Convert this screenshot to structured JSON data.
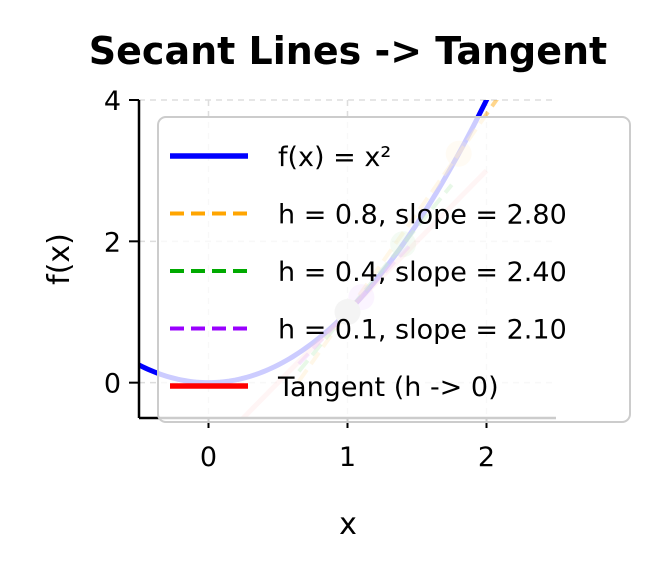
{
  "chart_data": {
    "type": "line",
    "title": "Secant Lines -> Tangent",
    "xlabel": "x",
    "ylabel": "f(x)",
    "xlim": [
      -0.5,
      2.5
    ],
    "ylim": [
      -0.5,
      4
    ],
    "xticks": [
      0,
      1,
      2
    ],
    "yticks": [
      0,
      2,
      4
    ],
    "xtick_labels": [
      "0",
      "1",
      "2"
    ],
    "ytick_labels": [
      "0",
      "2",
      "4"
    ],
    "grid": true,
    "legend": "upper-right",
    "point": {
      "x": 1,
      "y": 1,
      "color": "#c8c8c8"
    },
    "series": [
      {
        "name": "f(x) = x²",
        "kind": "curve",
        "color": "#0000ff",
        "x_range": [
          -0.5,
          2.1
        ]
      },
      {
        "name": "h = 0.8, slope = 2.80",
        "kind": "secant",
        "color": "#ffa500",
        "h": 0.8,
        "slope": 2.8
      },
      {
        "name": "h = 0.4, slope = 2.40",
        "kind": "secant",
        "color": "#00aa00",
        "h": 0.4,
        "slope": 2.4
      },
      {
        "name": "h = 0.1, slope = 2.10",
        "kind": "secant",
        "color": "#9900ff",
        "h": 0.1,
        "slope": 2.1
      },
      {
        "name": "Tangent (h -> 0)",
        "kind": "tangent",
        "color": "#ff0000",
        "slope": 2.0
      }
    ]
  }
}
